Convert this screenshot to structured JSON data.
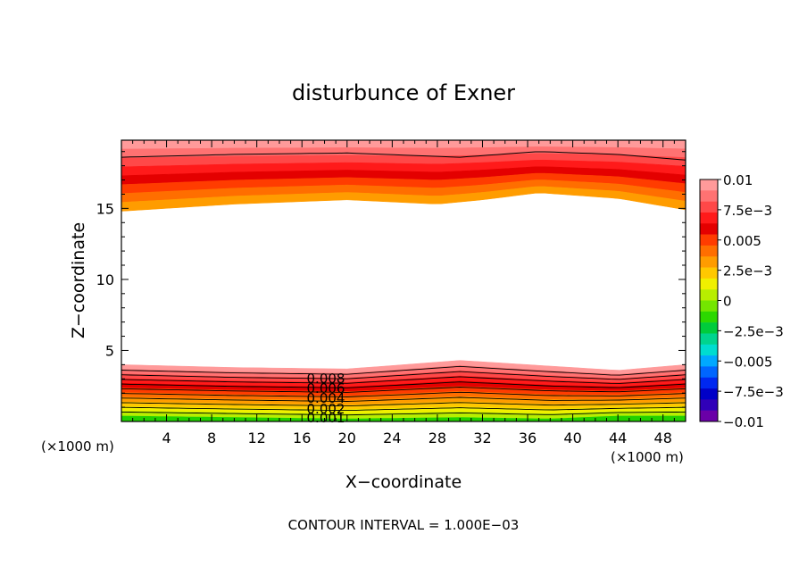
{
  "chart_data": {
    "type": "contour",
    "title": "disturbunce of Exner",
    "xlabel": "X−coordinate",
    "ylabel": "Z−coordinate",
    "x_unit": "(×1000 m)",
    "y_unit": "(×1000 m)",
    "xlim": [
      0,
      50
    ],
    "ylim": [
      0,
      19.8
    ],
    "x_ticks": [
      "4",
      "8",
      "12",
      "16",
      "20",
      "24",
      "28",
      "32",
      "36",
      "40",
      "44",
      "48"
    ],
    "y_ticks": [
      "5",
      "10",
      "15"
    ],
    "footer": "CONTOUR INTERVAL = 1.000E−03",
    "contour_interval": 0.001,
    "contour_labels": [
      "0.008",
      "0.006",
      "0.004",
      "0.002",
      "0.001"
    ],
    "colorbar": {
      "range": [
        -0.01,
        0.01
      ],
      "labels": [
        "0.01",
        "7.5e−3",
        "0.005",
        "2.5e−3",
        "0",
        "−2.5e−3",
        "−0.005",
        "−7.5e−3",
        "−0.01"
      ],
      "colors": [
        "#ff9a9a",
        "#ff7272",
        "#ff4848",
        "#ff1a1a",
        "#e40000",
        "#ff3c00",
        "#ff6e00",
        "#ff9c00",
        "#ffc800",
        "#f0f000",
        "#b8ee00",
        "#74e600",
        "#2cd800",
        "#00cc3c",
        "#00d48e",
        "#00dcd0",
        "#00a8ff",
        "#0066ff",
        "#0028f0",
        "#0000c8",
        "#3000b8",
        "#6a00a8"
      ]
    },
    "upper_layer": {
      "interface_z": [
        [
          0,
          14.8
        ],
        [
          10,
          15.3
        ],
        [
          20,
          15.6
        ],
        [
          28,
          15.3
        ],
        [
          32,
          15.6
        ],
        [
          37,
          16.1
        ],
        [
          44,
          15.7
        ],
        [
          50,
          14.9
        ]
      ],
      "levels_high_to_low": [
        0.01,
        0.009,
        0.008,
        0.007,
        0.006,
        0.005,
        0.004,
        0.003
      ],
      "contour_z": [
        [
          0,
          18.6
        ],
        [
          10,
          18.8
        ],
        [
          20,
          18.9
        ],
        [
          30,
          18.6
        ],
        [
          37,
          19.0
        ],
        [
          44,
          18.8
        ],
        [
          50,
          18.4
        ]
      ]
    },
    "lower_layer": {
      "top_z": [
        [
          0,
          4.0
        ],
        [
          10,
          3.8
        ],
        [
          20,
          3.7
        ],
        [
          30,
          4.3
        ],
        [
          38,
          3.9
        ],
        [
          44,
          3.6
        ],
        [
          50,
          4.0
        ]
      ],
      "bottom_z": [
        [
          0,
          0.4
        ],
        [
          10,
          0.3
        ],
        [
          20,
          0.2
        ],
        [
          30,
          0.3
        ],
        [
          38,
          0.2
        ],
        [
          44,
          0.4
        ],
        [
          50,
          0.4
        ]
      ],
      "levels_high_to_low": [
        0.01,
        0.009,
        0.008,
        0.007,
        0.006,
        0.005,
        0.004,
        0.003,
        0.002,
        0.001,
        0.0005
      ]
    }
  }
}
